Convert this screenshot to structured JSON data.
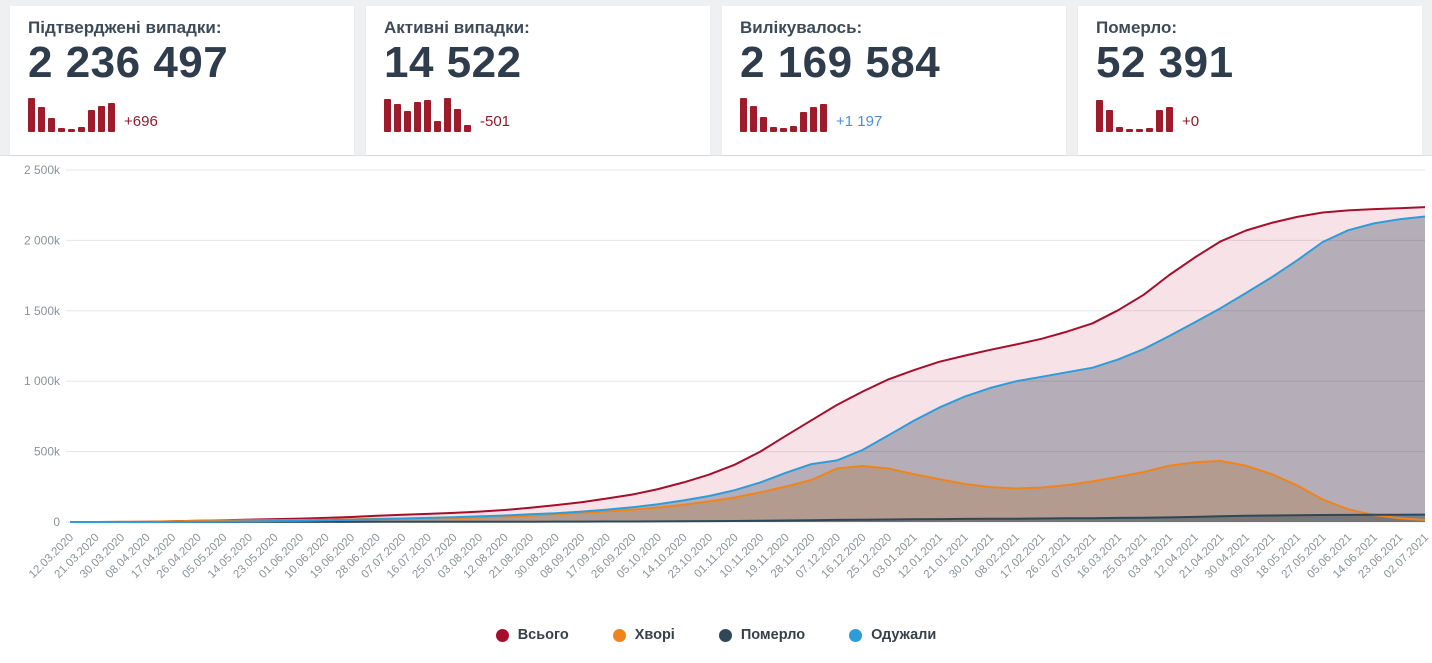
{
  "bar_color": "#9e1b2c",
  "cards": [
    {
      "label": "Підтверджені випадки:",
      "value": "2 236 497",
      "delta": "+696",
      "delta_color": "#8e1b2c",
      "bars": [
        95,
        70,
        40,
        12,
        8,
        14,
        60,
        72,
        80
      ]
    },
    {
      "label": "Активні випадки:",
      "value": "14 522",
      "delta": "-501",
      "delta_color": "#8e1b2c",
      "bars": [
        92,
        78,
        58,
        84,
        88,
        30,
        95,
        65,
        20
      ]
    },
    {
      "label": "Вилікувалось:",
      "value": "2 169 584",
      "delta": "+1 197",
      "delta_color": "#4a90d9",
      "bars": [
        95,
        72,
        42,
        14,
        10,
        16,
        55,
        70,
        78
      ]
    },
    {
      "label": "Померло:",
      "value": "52 391",
      "delta": "+0",
      "delta_color": "#8e1b2c",
      "bars": [
        88,
        60,
        14,
        8,
        8,
        12,
        62,
        70
      ]
    }
  ],
  "chart_data": {
    "type": "area",
    "title": "",
    "xlabel": "",
    "ylabel": "",
    "ylim": [
      0,
      2500000
    ],
    "grid": true,
    "legend_position": "bottom",
    "y_ticks": [
      {
        "value": 0,
        "label": "0"
      },
      {
        "value": 500000,
        "label": "500k"
      },
      {
        "value": 1000000,
        "label": "1 000k"
      },
      {
        "value": 1500000,
        "label": "1 500k"
      },
      {
        "value": 2000000,
        "label": "2 000k"
      },
      {
        "value": 2500000,
        "label": "2 500k"
      }
    ],
    "x": [
      "12.03.2020",
      "21.03.2020",
      "30.03.2020",
      "08.04.2020",
      "17.04.2020",
      "26.04.2020",
      "05.05.2020",
      "14.05.2020",
      "23.05.2020",
      "01.06.2020",
      "10.06.2020",
      "19.06.2020",
      "28.06.2020",
      "07.07.2020",
      "16.07.2020",
      "25.07.2020",
      "03.08.2020",
      "12.08.2020",
      "21.08.2020",
      "30.08.2020",
      "08.09.2020",
      "17.09.2020",
      "26.09.2020",
      "05.10.2020",
      "14.10.2020",
      "23.10.2020",
      "01.11.2020",
      "10.11.2020",
      "19.11.2020",
      "28.11.2020",
      "07.12.2020",
      "16.12.2020",
      "25.12.2020",
      "03.01.2021",
      "12.01.2021",
      "21.01.2021",
      "30.01.2021",
      "08.02.2021",
      "17.02.2021",
      "26.02.2021",
      "07.03.2021",
      "16.03.2021",
      "25.03.2021",
      "03.04.2021",
      "12.04.2021",
      "21.04.2021",
      "30.04.2021",
      "09.05.2021",
      "18.05.2021",
      "27.05.2021",
      "05.06.2021",
      "14.06.2021",
      "23.06.2021",
      "02.07.2021"
    ],
    "series": [
      {
        "name": "Всього",
        "color": "#a50f2d",
        "fill_color": "#c0123a",
        "fill_opacity": 0.12,
        "values": [
          1,
          47,
          548,
          1668,
          4662,
          9158,
          12697,
          16847,
          20580,
          24340,
          29070,
          35825,
          44334,
          51224,
          57264,
          64410,
          73761,
          85223,
          100810,
          120306,
          140479,
          166694,
          195504,
          234000,
          281000,
          337000,
          407000,
          500000,
          612000,
          722000,
          832000,
          926000,
          1012000,
          1078000,
          1138000,
          1182000,
          1223000,
          1261000,
          1301000,
          1352000,
          1411000,
          1504000,
          1614000,
          1754000,
          1879000,
          1993000,
          2070000,
          2124000,
          2167000,
          2198000,
          2213000,
          2222000,
          2229000,
          2236497
        ]
      },
      {
        "name": "Хворі",
        "color": "#f0841c",
        "fill_color": "#f0841c",
        "fill_opacity": 0.3,
        "values": [
          1,
          44,
          530,
          1590,
          4430,
          8260,
          10400,
          12000,
          13100,
          14200,
          15700,
          19000,
          23000,
          25000,
          26500,
          28500,
          32000,
          37000,
          44000,
          55000,
          64000,
          75000,
          87000,
          103000,
          122000,
          146000,
          174000,
          210000,
          252000,
          298000,
          380000,
          398000,
          380000,
          340000,
          305000,
          270000,
          248000,
          238000,
          245000,
          262000,
          288000,
          320000,
          355000,
          400000,
          425000,
          434000,
          400000,
          340000,
          260000,
          160000,
          90000,
          50000,
          27000,
          14522
        ]
      },
      {
        "name": "Померло",
        "color": "#2f4858",
        "fill_color": "#2f4858",
        "fill_opacity": 0.45,
        "values": [
          0,
          3,
          13,
          52,
          125,
          220,
          316,
          456,
          605,
          727,
          854,
          984,
          1159,
          1327,
          1456,
          1590,
          1762,
          1972,
          2207,
          2514,
          2934,
          3400,
          3903,
          4520,
          5252,
          6185,
          7306,
          8812,
          10763,
          12717,
          14702,
          16308,
          17852,
          19161,
          20376,
          21662,
          22628,
          23644,
          24797,
          26050,
          27247,
          28986,
          30431,
          32825,
          36014,
          40367,
          43778,
          46246,
          48089,
          49488,
          50517,
          51348,
          51992,
          52391
        ]
      },
      {
        "name": "Одужали",
        "color": "#2d9cdb",
        "fill_color": "#34495e",
        "fill_opacity": 0.34,
        "values": [
          0,
          0,
          5,
          26,
          107,
          678,
          1981,
          4391,
          6875,
          9413,
          12516,
          15841,
          20175,
          24897,
          29308,
          34320,
          39999,
          46251,
          54603,
          62792,
          73545,
          88294,
          104601,
          126480,
          153748,
          184815,
          225694,
          281188,
          349237,
          411283,
          437298,
          511692,
          614148,
          718839,
          812624,
          890338,
          952372,
          999356,
          1031203,
          1063950,
          1095753,
          1155014,
          1228569,
          1321175,
          1417986,
          1518633,
          1626222,
          1737754,
          1858911,
          1988512,
          2072483,
          2120652,
          2150008,
          2169584
        ]
      }
    ]
  }
}
